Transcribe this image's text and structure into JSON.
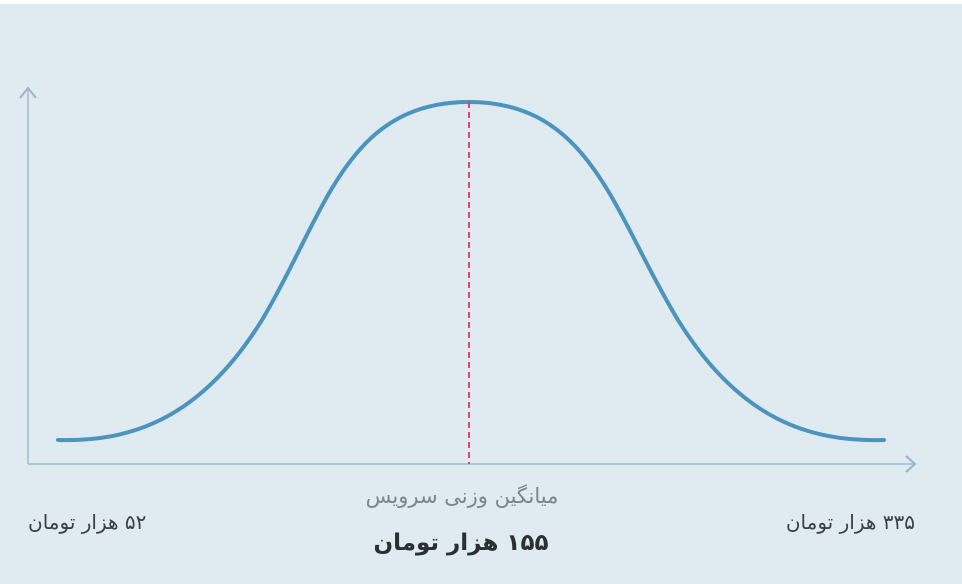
{
  "labels": {
    "mean_caption": "میانگین وزنی سرویس",
    "mean_value": "۱۵۵ هزار تومان",
    "min": "۵۲ هزار تومان",
    "max": "۳۳۵ هزار تومان"
  }
}
